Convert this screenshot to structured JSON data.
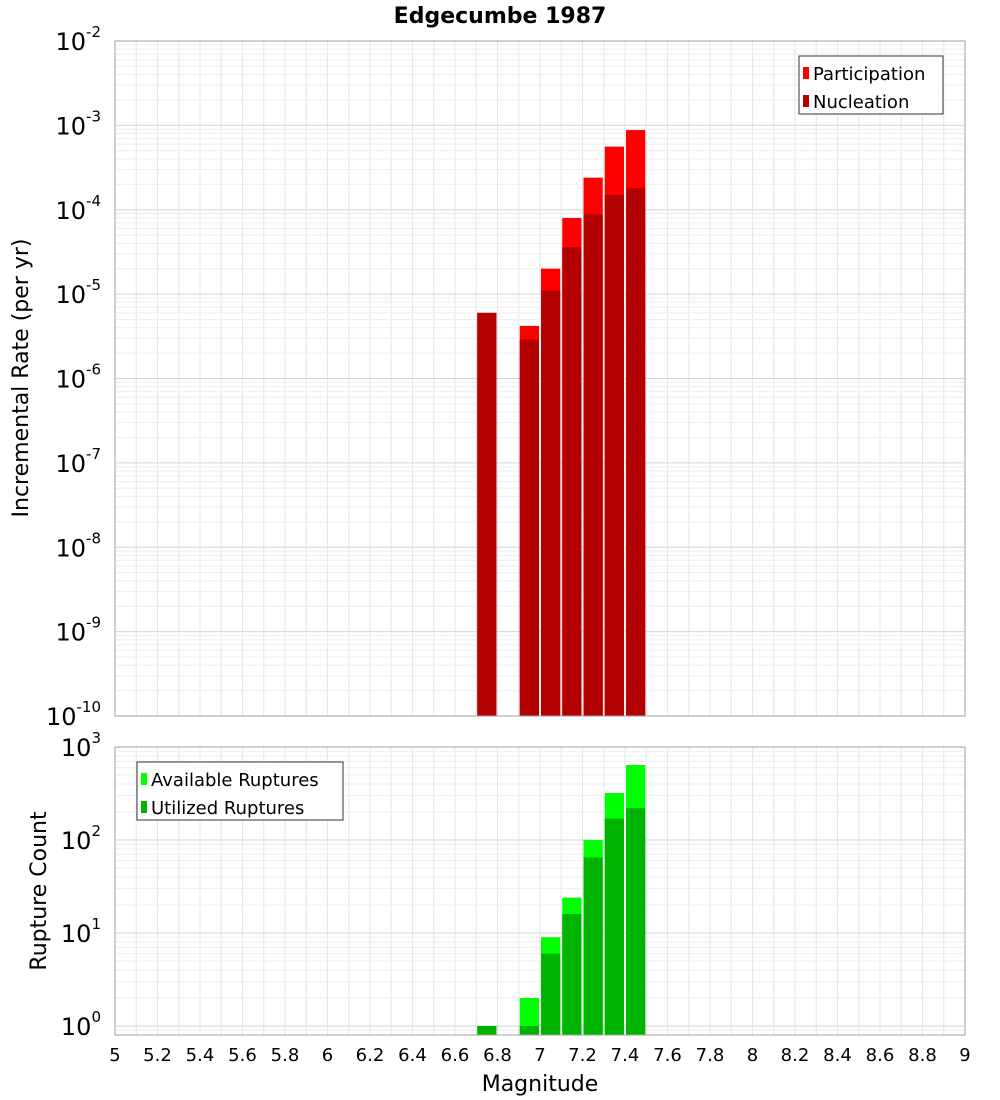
{
  "chart_data": [
    {
      "type": "bar",
      "title": "Edgecumbe 1987",
      "xlabel": "",
      "ylabel": "Incremental Rate (per yr)",
      "yscale": "log",
      "ylim": [
        1e-10,
        0.01
      ],
      "xlim": [
        5,
        9
      ],
      "grid": true,
      "legend_position": "top-right",
      "bar_width": 0.1,
      "y_ticks": [
        {
          "base": "10",
          "exp": "-10"
        },
        {
          "base": "10",
          "exp": "-9"
        },
        {
          "base": "10",
          "exp": "-8"
        },
        {
          "base": "10",
          "exp": "-7"
        },
        {
          "base": "10",
          "exp": "-6"
        },
        {
          "base": "10",
          "exp": "-5"
        },
        {
          "base": "10",
          "exp": "-4"
        },
        {
          "base": "10",
          "exp": "-3"
        },
        {
          "base": "10",
          "exp": "-2"
        }
      ],
      "x": [
        6.75,
        6.95,
        7.05,
        7.15,
        7.25,
        7.35,
        7.45
      ],
      "series": [
        {
          "name": "Participation",
          "color": "#ff0000",
          "values": [
            6e-06,
            4.2e-06,
            2e-05,
            8e-05,
            0.00024,
            0.00056,
            0.00088
          ]
        },
        {
          "name": "Nucleation",
          "color": "#b30000",
          "values": [
            6e-06,
            2.9e-06,
            1.1e-05,
            3.6e-05,
            8.8e-05,
            0.00015,
            0.00018
          ]
        }
      ]
    },
    {
      "type": "bar",
      "title": "",
      "xlabel": "Magnitude",
      "ylabel": "Rupture Count",
      "yscale": "log",
      "ylim": [
        0.8,
        1000
      ],
      "xlim": [
        5,
        9
      ],
      "grid": true,
      "legend_position": "top-left",
      "bar_width": 0.1,
      "y_ticks": [
        {
          "base": "10",
          "exp": "0"
        },
        {
          "base": "10",
          "exp": "1"
        },
        {
          "base": "10",
          "exp": "2"
        },
        {
          "base": "10",
          "exp": "3"
        }
      ],
      "x_ticks": [
        "5",
        "5.2",
        "5.4",
        "5.6",
        "5.8",
        "6",
        "6.2",
        "6.4",
        "6.6",
        "6.8",
        "7",
        "7.2",
        "7.4",
        "7.6",
        "7.8",
        "8",
        "8.2",
        "8.4",
        "8.6",
        "8.8",
        "9"
      ],
      "x": [
        6.75,
        6.95,
        7.05,
        7.15,
        7.25,
        7.35,
        7.45
      ],
      "series": [
        {
          "name": "Available Ruptures",
          "color": "#00ff00",
          "values": [
            1,
            2,
            9,
            24,
            100,
            320,
            640
          ]
        },
        {
          "name": "Utilized Ruptures",
          "color": "#00b300",
          "values": [
            1,
            1,
            6,
            16,
            65,
            170,
            220
          ]
        }
      ]
    }
  ]
}
